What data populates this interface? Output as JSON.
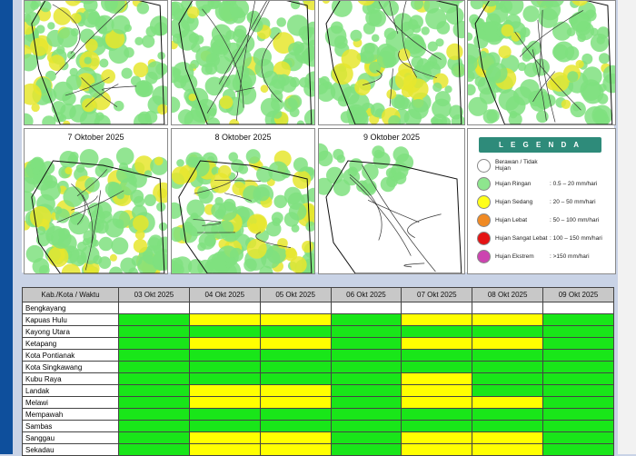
{
  "legend": {
    "title": "L E G E N D A",
    "items": [
      {
        "name": "Berawan / Tidak Hujan",
        "range": "",
        "color": "#ffffff"
      },
      {
        "name": "Hujan Ringan",
        "range": ": 0.5 – 20 mm/hari",
        "color": "#8ee68e"
      },
      {
        "name": "Hujan Sedang",
        "range": ": 20 – 50 mm/hari",
        "color": "#ffff1a"
      },
      {
        "name": "Hujan Lebat",
        "range": ": 50 – 100 mm/hari",
        "color": "#f08a24"
      },
      {
        "name": "Hujan Sangat Lebat",
        "range": ": 100 – 150 mm/hari",
        "color": "#e41414"
      },
      {
        "name": "Hujan Ekstrem",
        "range": ": >150 mm/hari",
        "color": "#cc44b0"
      }
    ]
  },
  "maps": {
    "bottom_titles": [
      "7 Oktober 2025",
      "8 Oktober 2025",
      "9 Oktober 2025"
    ]
  },
  "table": {
    "header_label": "Kab./Kota / Waktu",
    "dates": [
      "03 Okt 2025",
      "04 Okt 2025",
      "05 Okt 2025",
      "06 Okt 2025",
      "07 Okt 2025",
      "08 Okt 2025",
      "09 Okt 2025"
    ],
    "colors": {
      "green": "#19e619",
      "yellow": "#ffff00"
    },
    "rows": [
      {
        "name": "Bengkayang",
        "cells": [
          "none",
          "none",
          "none",
          "none",
          "none",
          "none",
          "none"
        ]
      },
      {
        "name": "Kapuas Hulu",
        "cells": [
          "green",
          "yellow",
          "yellow",
          "green",
          "yellow",
          "yellow",
          "green"
        ]
      },
      {
        "name": "Kayong Utara",
        "cells": [
          "green",
          "green",
          "green",
          "green",
          "green",
          "green",
          "green"
        ]
      },
      {
        "name": "Ketapang",
        "cells": [
          "green",
          "yellow",
          "yellow",
          "green",
          "yellow",
          "yellow",
          "green"
        ]
      },
      {
        "name": "Kota Pontianak",
        "cells": [
          "green",
          "green",
          "green",
          "green",
          "green",
          "green",
          "green"
        ]
      },
      {
        "name": "Kota Singkawang",
        "cells": [
          "green",
          "green",
          "green",
          "green",
          "green",
          "green",
          "green"
        ]
      },
      {
        "name": "Kubu Raya",
        "cells": [
          "green",
          "green",
          "green",
          "green",
          "yellow",
          "green",
          "green"
        ]
      },
      {
        "name": "Landak",
        "cells": [
          "green",
          "yellow",
          "yellow",
          "green",
          "yellow",
          "green",
          "green"
        ]
      },
      {
        "name": "Melawi",
        "cells": [
          "green",
          "yellow",
          "yellow",
          "green",
          "yellow",
          "yellow",
          "green"
        ]
      },
      {
        "name": "Mempawah",
        "cells": [
          "green",
          "green",
          "green",
          "green",
          "green",
          "green",
          "green"
        ]
      },
      {
        "name": "Sambas",
        "cells": [
          "green",
          "green",
          "green",
          "green",
          "green",
          "green",
          "green"
        ]
      },
      {
        "name": "Sanggau",
        "cells": [
          "green",
          "yellow",
          "yellow",
          "green",
          "yellow",
          "yellow",
          "green"
        ]
      },
      {
        "name": "Sekadau",
        "cells": [
          "green",
          "yellow",
          "yellow",
          "green",
          "yellow",
          "yellow",
          "green"
        ]
      }
    ]
  }
}
